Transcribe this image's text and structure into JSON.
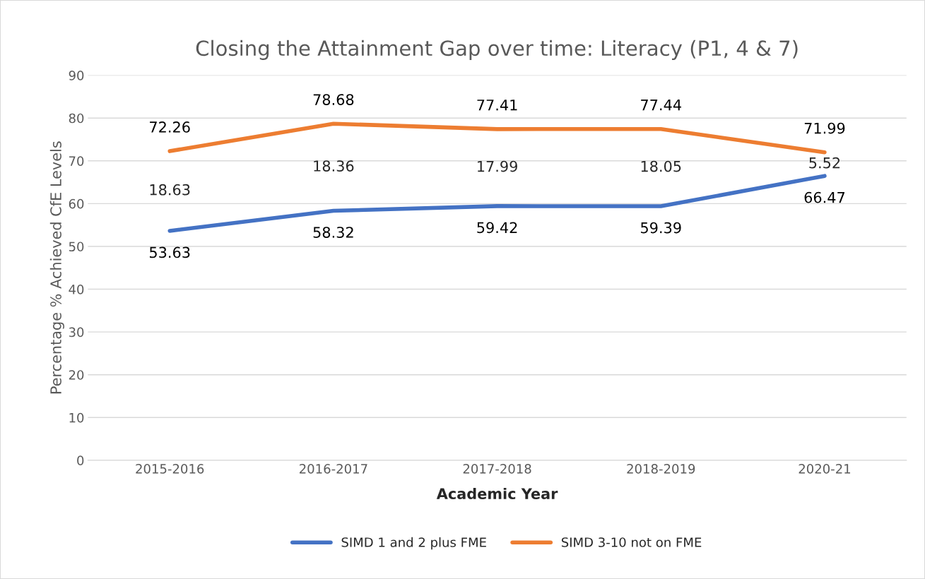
{
  "chart_data": {
    "type": "line",
    "title": "Closing the Attainment Gap over time: Literacy (P1, 4 & 7)",
    "xlabel": "Academic Year",
    "ylabel": "Percentage % Achieved CfE Levels",
    "categories": [
      "2015-2016",
      "2016-2017",
      "2017-2018",
      "2018-2019",
      "2020-21"
    ],
    "series": [
      {
        "name": "SIMD 1 and 2 plus FME",
        "color": "#4472c4",
        "values": [
          53.63,
          58.32,
          59.42,
          59.39,
          66.47
        ]
      },
      {
        "name": "SIMD 3-10 not on FME",
        "color": "#ed7d31",
        "values": [
          72.26,
          78.68,
          77.41,
          77.44,
          71.99
        ]
      }
    ],
    "annotations": [
      "18.63",
      "18.36",
      "17.99",
      "18.05",
      "5.52"
    ],
    "ylim": [
      0,
      90
    ],
    "yticks": [
      0,
      10,
      20,
      30,
      40,
      50,
      60,
      70,
      80,
      90
    ],
    "grid": "y",
    "legend": "bottom",
    "data_labels": true,
    "marker": "none",
    "line_style": "solid"
  }
}
